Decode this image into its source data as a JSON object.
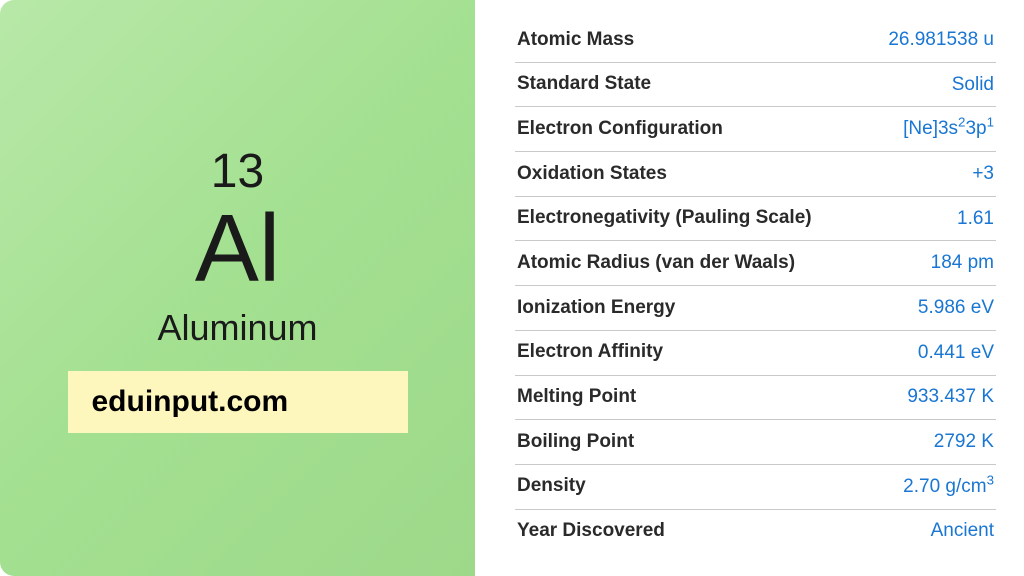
{
  "element": {
    "atomic_number": "13",
    "symbol": "Al",
    "name": "Aluminum"
  },
  "watermark": "eduinput.com",
  "colors": {
    "panel_bg_start": "#b8e8a8",
    "panel_bg_end": "#9ed98a",
    "watermark_bg": "#fdf6bd",
    "label_color": "#2a2a2a",
    "value_color": "#1976d2",
    "border_color": "#c9c9c9"
  },
  "properties": [
    {
      "label": "Atomic Mass",
      "value": "26.981538 u",
      "html": false
    },
    {
      "label": "Standard State",
      "value": "Solid",
      "html": false
    },
    {
      "label": "Electron Configuration",
      "value": "[Ne]3s<sup>2</sup>3p<sup>1</sup>",
      "html": true
    },
    {
      "label": "Oxidation States",
      "value": "+3",
      "html": false
    },
    {
      "label": "Electronegativity (Pauling Scale)",
      "value": "1.61",
      "html": false
    },
    {
      "label": "Atomic Radius (van der Waals)",
      "value": "184 pm",
      "html": false
    },
    {
      "label": "Ionization Energy",
      "value": "5.986 eV",
      "html": false
    },
    {
      "label": "Electron Affinity",
      "value": "0.441 eV",
      "html": false
    },
    {
      "label": "Melting Point",
      "value": "933.437 K",
      "html": false
    },
    {
      "label": "Boiling Point",
      "value": "2792 K",
      "html": false
    },
    {
      "label": "Density",
      "value": "2.70 g/cm<sup>3</sup>",
      "html": true
    },
    {
      "label": "Year Discovered",
      "value": "Ancient",
      "html": false
    }
  ]
}
